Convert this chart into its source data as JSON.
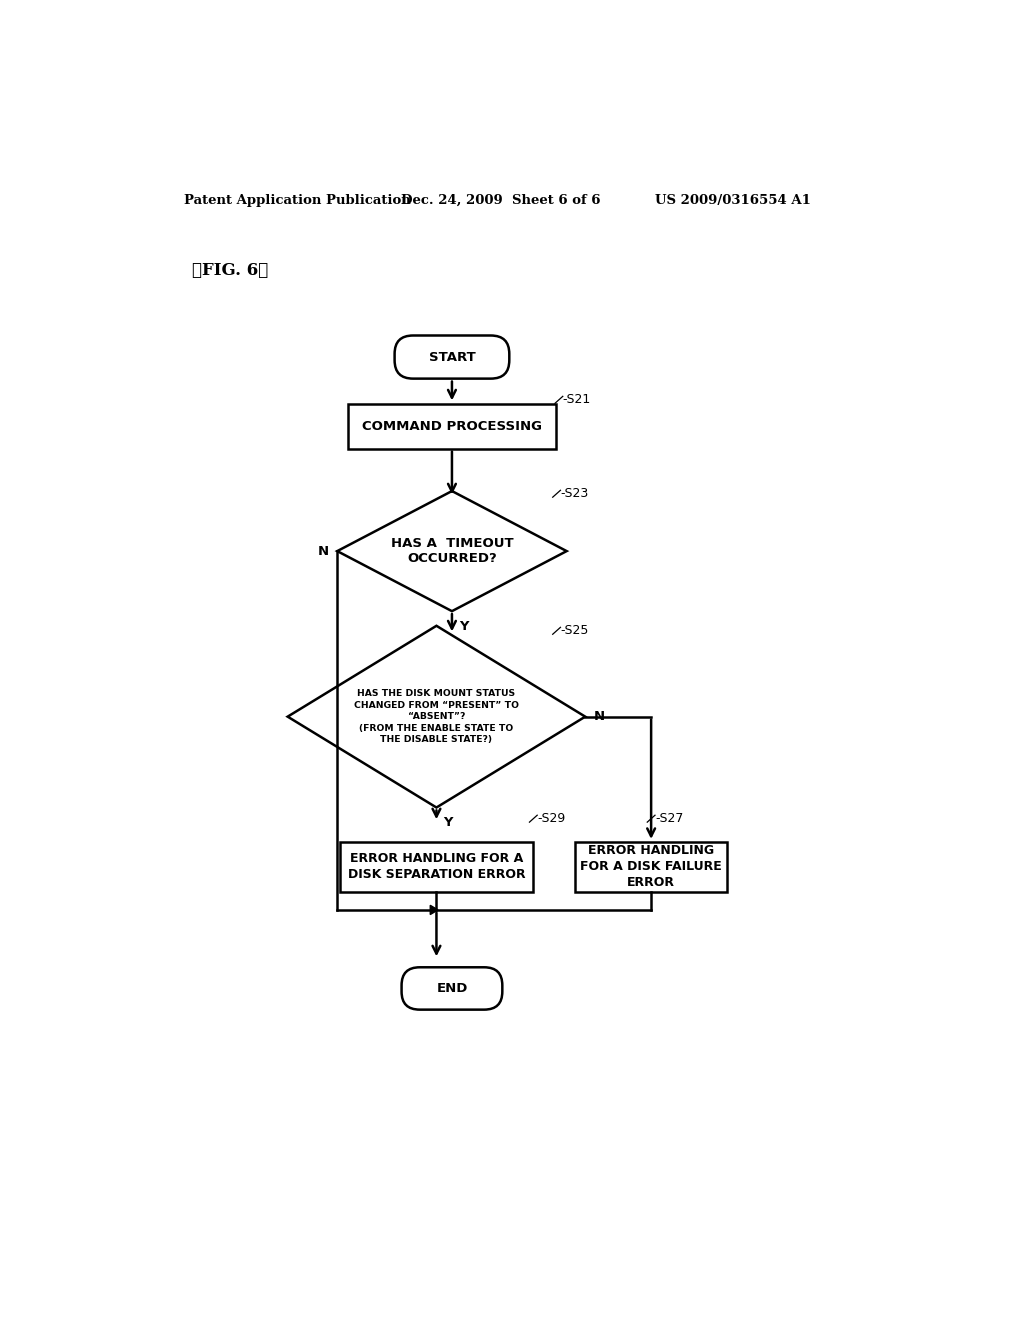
{
  "bg_color": "#ffffff",
  "header_left": "Patent Application Publication",
  "header_mid": "Dec. 24, 2009  Sheet 6 of 6",
  "header_right": "US 2009/0316554 A1",
  "fig_label": "【FIG. 6】",
  "start_label": "START",
  "end_label": "END",
  "s21_label": "-S21",
  "s23_label": "-S23",
  "s25_label": "-S25",
  "s27_label": "-S27",
  "s29_label": "-S29",
  "cmd_proc": "COMMAND PROCESSING",
  "timeout_q": "HAS A  TIMEOUT\nOCCURRED?",
  "disk_mount_q": "HAS THE DISK MOUNT STATUS\nCHANGED FROM “PRESENT” TO\n“ABSENT”?\n(FROM THE ENABLE STATE TO\nTHE DISABLE STATE?)",
  "error_sep": "ERROR HANDLING FOR A\nDISK SEPARATION ERROR",
  "error_fail": "ERROR HANDLING\nFOR A DISK FAILURE\nERROR",
  "line_color": "#000000",
  "text_color": "#000000",
  "box_facecolor": "#ffffff",
  "box_edgecolor": "#000000",
  "lw": 1.8,
  "fontsize_body": 9.5,
  "fontsize_header": 9.5,
  "fontsize_step": 9.0,
  "fontsize_figlabel": 12
}
